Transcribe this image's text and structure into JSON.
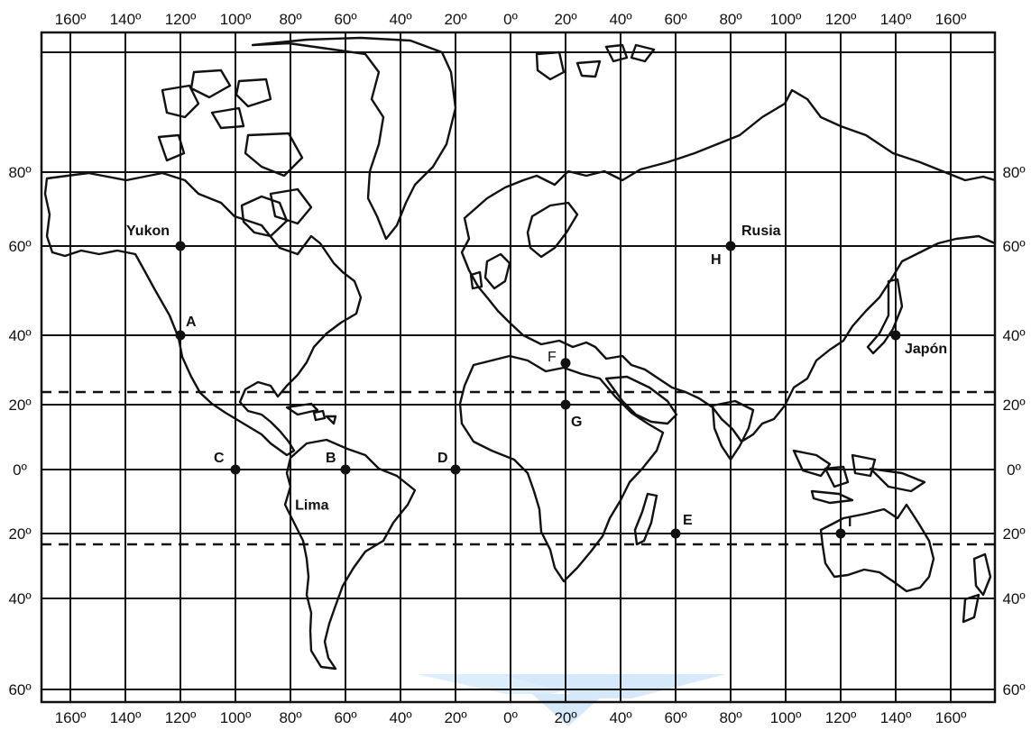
{
  "longitude_labels": {
    "top": [
      "160º",
      "140º",
      "120º",
      "100º",
      "80º",
      "60º",
      "40º",
      "20º",
      "0º",
      "20º",
      "40º",
      "60º",
      "80º",
      "100º",
      "120º",
      "140º",
      "160º"
    ],
    "bottom": [
      "160º",
      "140º",
      "120º",
      "100º",
      "80º",
      "60º",
      "40º",
      "20º",
      "0º",
      "20º",
      "40º",
      "60º",
      "80º",
      "100º",
      "120º",
      "140º",
      "160º"
    ]
  },
  "latitude_labels": [
    "80º",
    "60º",
    "40º",
    "20º",
    "0º",
    "20º",
    "40º",
    "60º"
  ],
  "points": [
    {
      "id": "yukon",
      "label": "Yukon",
      "lon": -120,
      "lat": 60
    },
    {
      "id": "a",
      "label": "A",
      "lon": -120,
      "lat": 40
    },
    {
      "id": "c",
      "label": "C",
      "lon": -100,
      "lat": 0
    },
    {
      "id": "b",
      "label": "B",
      "lon": -60,
      "lat": 0
    },
    {
      "id": "lima",
      "label": "Lima",
      "lon": -77,
      "lat": -12
    },
    {
      "id": "d",
      "label": "D",
      "lon": -20,
      "lat": 0
    },
    {
      "id": "f",
      "label": "F",
      "lon": 20,
      "lat": 32
    },
    {
      "id": "g",
      "label": "G",
      "lon": 20,
      "lat": 20
    },
    {
      "id": "e",
      "label": "E",
      "lon": 60,
      "lat": -20
    },
    {
      "id": "h",
      "label": "H",
      "lon": 80,
      "lat": 60
    },
    {
      "id": "rusia",
      "label": "Rusia",
      "lon": 80,
      "lat": 60
    },
    {
      "id": "japon",
      "label": "Japón",
      "lon": 140,
      "lat": 40
    },
    {
      "id": "i",
      "label": "I",
      "lon": 120,
      "lat": -20
    }
  ],
  "tropics": [
    23.5,
    -23.5
  ],
  "colors": {
    "ink": "#111111",
    "background": "#ffffff",
    "watermark": "#cfe6fb"
  }
}
